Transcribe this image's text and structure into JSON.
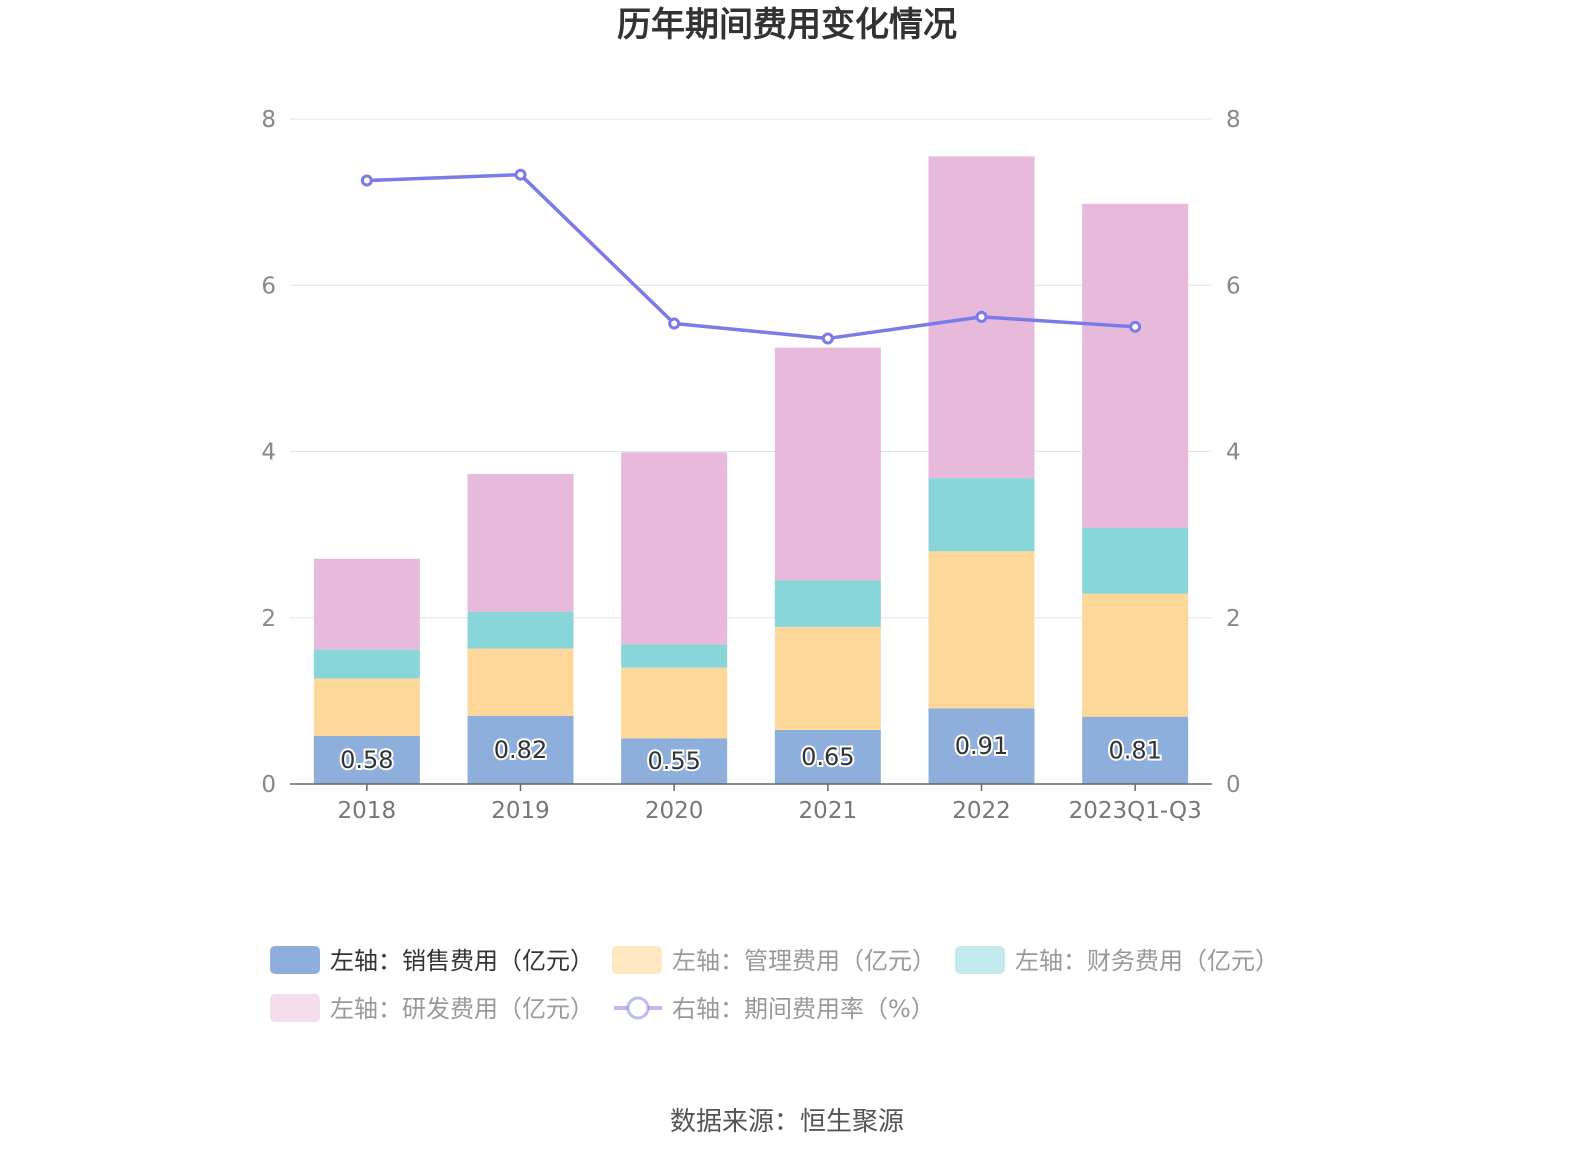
{
  "chart_data": {
    "type": "bar",
    "title": "历年期间费用变化情况",
    "categories": [
      "2018",
      "2019",
      "2020",
      "2021",
      "2022",
      "2023Q1-Q3"
    ],
    "stacked": true,
    "left_axis": {
      "min": 0,
      "max": 8,
      "ticks": [
        "0",
        "2",
        "4",
        "6",
        "8"
      ]
    },
    "right_axis": {
      "min": 0,
      "max": 8,
      "ticks": [
        "0",
        "2",
        "4",
        "6",
        "8"
      ]
    },
    "series": [
      {
        "name": "左轴：销售费用（亿元）",
        "axis": "left",
        "kind": "bar",
        "color": "#8eaedb",
        "values": [
          0.58,
          0.82,
          0.55,
          0.65,
          0.91,
          0.81
        ],
        "labels": [
          "0.58",
          "0.82",
          "0.55",
          "0.65",
          "0.91",
          "0.81"
        ]
      },
      {
        "name": "左轴：管理费用（亿元）",
        "axis": "left",
        "kind": "bar",
        "color": "#fdd89a",
        "values": [
          0.69,
          0.81,
          0.85,
          1.24,
          1.89,
          1.48
        ]
      },
      {
        "name": "左轴：财务费用（亿元）",
        "axis": "left",
        "kind": "bar",
        "color": "#88d6da",
        "values": [
          0.35,
          0.44,
          0.28,
          0.56,
          0.88,
          0.79
        ]
      },
      {
        "name": "左轴：研发费用（亿元）",
        "axis": "left",
        "kind": "bar",
        "color": "#e7b9da",
        "values": [
          1.09,
          1.66,
          2.31,
          2.8,
          3.87,
          3.9
        ]
      },
      {
        "name": "右轴：期间费用率（%）",
        "axis": "right",
        "kind": "line",
        "color": "#7a7ae8",
        "values": [
          7.26,
          7.33,
          5.54,
          5.36,
          5.62,
          5.5
        ]
      }
    ],
    "legend_position": "bottom"
  },
  "source_text": "数据来源：恒生聚源"
}
